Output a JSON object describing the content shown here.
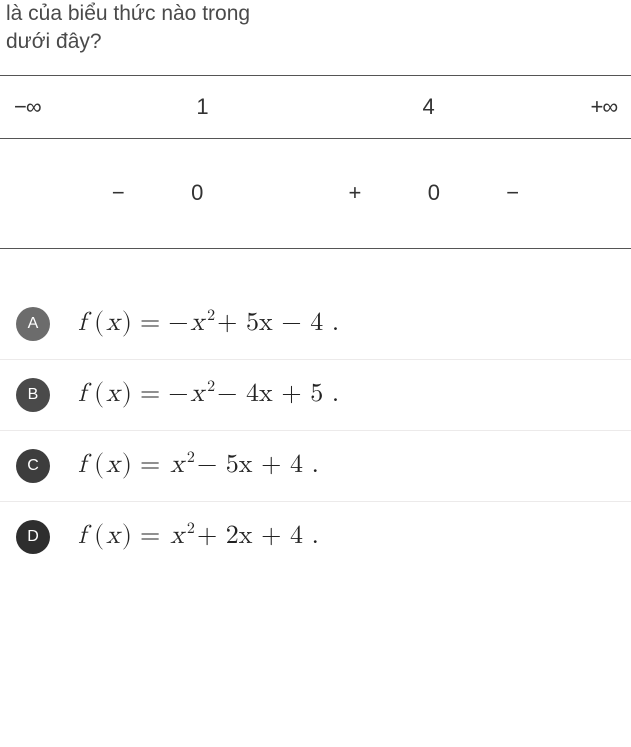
{
  "question": {
    "line1": "là của biểu thức nào trong",
    "line2": "dưới đây?"
  },
  "sign_table": {
    "header": {
      "neg_inf": "−∞",
      "v1": "1",
      "v2": "4",
      "pos_inf": "+∞",
      "text_color": "#333333",
      "border_color": "#555555"
    },
    "body": {
      "s1": "−",
      "z1": "0",
      "s2": "+",
      "z2": "0",
      "s3": "−"
    }
  },
  "options": [
    {
      "key": "A",
      "badge_color": "#6c6c6c",
      "formula_parts": {
        "prefix": "f (x) = ",
        "a_sign": "−",
        "a_var": "x",
        "a_exp": "2",
        "b": " + 5x − 4 ."
      }
    },
    {
      "key": "B",
      "badge_color": "#4a4a4a",
      "formula_parts": {
        "prefix": "f (x) = ",
        "a_sign": "−",
        "a_var": "x",
        "a_exp": "2",
        "b": " − 4x + 5 ."
      }
    },
    {
      "key": "C",
      "badge_color": "#3d3d3d",
      "formula_parts": {
        "prefix": "f (x) = ",
        "a_sign": "",
        "a_var": "x",
        "a_exp": "2",
        "b": " − 5x + 4 ."
      }
    },
    {
      "key": "D",
      "badge_color": "#2e2e2e",
      "formula_parts": {
        "prefix": "f (x) = ",
        "a_sign": "",
        "a_var": "x",
        "a_exp": "2",
        "b": " + 2x + 4 ."
      }
    }
  ],
  "style": {
    "body_bg": "#ffffff",
    "option_border": "#eceaea",
    "text_color": "#333333",
    "formula_color": "#222222"
  }
}
